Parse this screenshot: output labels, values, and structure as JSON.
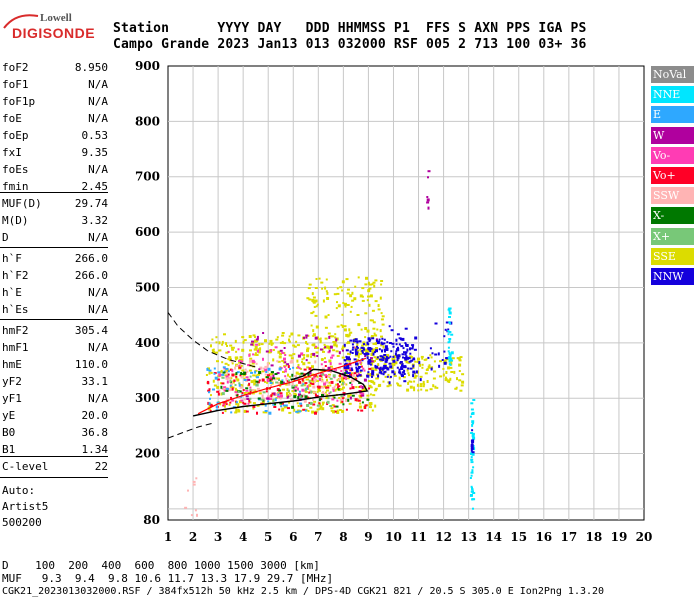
{
  "logo": {
    "line1": "Lowell",
    "line2": "DIGISONDE"
  },
  "header": {
    "row1": "Station      YYYY DAY   DDD HHMMSS P1  FFS S AXN PPS IGA PS",
    "row2": "Campo Grande 2023 Jan13 013 032000 RSF 005 2 713 100 03+ 36"
  },
  "params": [
    {
      "label": "foF2",
      "value": "8.950"
    },
    {
      "label": "foF1",
      "value": "N/A"
    },
    {
      "label": "foF1p",
      "value": "N/A"
    },
    {
      "label": "foE",
      "value": "N/A"
    },
    {
      "label": "foEp",
      "value": "0.53"
    },
    {
      "label": "fxI",
      "value": "9.35"
    },
    {
      "label": "foEs",
      "value": "N/A"
    },
    {
      "label": "fmin",
      "value": "2.45"
    },
    {
      "label": "MUF(D)",
      "value": "29.74"
    },
    {
      "label": "M(D)",
      "value": "3.32"
    },
    {
      "label": "D",
      "value": "N/A"
    },
    {
      "label": "h`F",
      "value": "266.0"
    },
    {
      "label": "h`F2",
      "value": "266.0"
    },
    {
      "label": "h`E",
      "value": "N/A"
    },
    {
      "label": "h`Es",
      "value": "N/A"
    },
    {
      "label": "hmF2",
      "value": "305.4"
    },
    {
      "label": "hmF1",
      "value": "N/A"
    },
    {
      "label": "hmE",
      "value": "110.0"
    },
    {
      "label": "yF2",
      "value": "33.1"
    },
    {
      "label": "yF1",
      "value": "N/A"
    },
    {
      "label": "yE",
      "value": "20.0"
    },
    {
      "label": "B0",
      "value": "36.8"
    },
    {
      "label": "B1",
      "value": "1.34"
    },
    {
      "label": "C-level",
      "value": "22"
    }
  ],
  "auto": {
    "line1": "Auto:",
    "line2": "Artist5",
    "line3": "500200"
  },
  "legend": [
    {
      "label": "NoVal",
      "color": "#8c8c8c"
    },
    {
      "label": "NNE",
      "color": "#00e6ff"
    },
    {
      "label": "E",
      "color": "#2ea8ff"
    },
    {
      "label": "W",
      "color": "#b0009e"
    },
    {
      "label": "Vo-",
      "color": "#ff3cb4"
    },
    {
      "label": "Vo+",
      "color": "#ff0026"
    },
    {
      "label": "SSW",
      "color": "#ffb4b4"
    },
    {
      "label": "X-",
      "color": "#007800"
    },
    {
      "label": "X+",
      "color": "#78c878"
    },
    {
      "label": "SSE",
      "color": "#dcdc00"
    },
    {
      "label": "NNW",
      "color": "#1400dc"
    }
  ],
  "footer": {
    "line1": "D    100  200  400  600  800 1000 1500 3000 [km]",
    "line2": "MUF   9.3  9.4  9.8 10.6 11.7 13.3 17.9 29.7 [MHz]",
    "line3": "CGK21_2023013032000.RSF / 384fx512h 50 kHz 2.5 km / DPS-4D CGK21 821 / 20.5 S 305.0 E Ion2Png 1.3.20"
  },
  "chart_data": {
    "type": "scatter",
    "xlim": [
      1,
      20
    ],
    "ylim": [
      80,
      900
    ],
    "x_ticks": [
      "1",
      "2",
      "3",
      "4",
      "5",
      "6",
      "7",
      "8",
      "9",
      "10",
      "11",
      "12",
      "13",
      "14",
      "15",
      "16",
      "17",
      "18",
      "19",
      "20"
    ],
    "y_ticks": [
      "900",
      "800",
      "700",
      "600",
      "500",
      "400",
      "300",
      "200",
      "80"
    ],
    "grid": true,
    "legend_position": "right",
    "profile_solid": [
      [
        2.0,
        268
      ],
      [
        3,
        278
      ],
      [
        4,
        285
      ],
      [
        5,
        290
      ],
      [
        6,
        295
      ],
      [
        7,
        302
      ],
      [
        8,
        307
      ],
      [
        8.95,
        313
      ],
      [
        8.8,
        325
      ],
      [
        8.3,
        338
      ],
      [
        7.5,
        350
      ],
      [
        6.8,
        352
      ],
      [
        6.4,
        340
      ],
      [
        5.9,
        333
      ]
    ],
    "profile_dashed_upper": [
      [
        1,
        455
      ],
      [
        1.4,
        430
      ],
      [
        2,
        405
      ],
      [
        2.6,
        385
      ],
      [
        3.4,
        370
      ],
      [
        4.6,
        355
      ]
    ],
    "profile_dashed_lower": [
      [
        1,
        228
      ],
      [
        1.6,
        238
      ],
      [
        2.2,
        248
      ],
      [
        2.8,
        255
      ]
    ],
    "red_trace": [
      [
        2.2,
        272
      ],
      [
        3,
        290
      ],
      [
        4,
        305
      ],
      [
        5,
        318
      ],
      [
        6,
        330
      ],
      [
        7,
        345
      ],
      [
        8,
        358
      ],
      [
        8.9,
        372
      ]
    ],
    "clusters": [
      {
        "color": "#dcdc00",
        "n": 520,
        "x": [
          2.5,
          9.3
        ],
        "y": [
          275,
          420
        ]
      },
      {
        "color": "#dcdc00",
        "n": 140,
        "x": [
          6.5,
          9.6
        ],
        "y": [
          380,
          520
        ]
      },
      {
        "color": "#dcdc00",
        "n": 160,
        "x": [
          9.0,
          12.8
        ],
        "y": [
          315,
          380
        ]
      },
      {
        "color": "#ffb4b4",
        "n": 120,
        "x": [
          3.0,
          8.5
        ],
        "y": [
          295,
          370
        ]
      },
      {
        "color": "#ff0026",
        "n": 130,
        "x": [
          2.5,
          9.0
        ],
        "y": [
          275,
          360
        ]
      },
      {
        "color": "#ff3cb4",
        "n": 90,
        "x": [
          3.0,
          9.0
        ],
        "y": [
          290,
          400
        ]
      },
      {
        "color": "#b0009e",
        "n": 60,
        "x": [
          4.0,
          9.5
        ],
        "y": [
          300,
          420
        ]
      },
      {
        "color": "#1400dc",
        "n": 210,
        "x": [
          8.0,
          10.8
        ],
        "y": [
          340,
          410
        ]
      },
      {
        "color": "#1400dc",
        "n": 40,
        "x": [
          9.5,
          12.3
        ],
        "y": [
          330,
          440
        ]
      },
      {
        "color": "#2ea8ff",
        "n": 60,
        "x": [
          2.5,
          6.5
        ],
        "y": [
          275,
          360
        ]
      },
      {
        "color": "#007800",
        "n": 50,
        "x": [
          3.0,
          9.0
        ],
        "y": [
          285,
          350
        ]
      },
      {
        "color": "#78c878",
        "n": 40,
        "x": [
          3.0,
          8.0
        ],
        "y": [
          285,
          345
        ]
      },
      {
        "color": "#00e6ff",
        "n": 30,
        "x": [
          12.15,
          12.3
        ],
        "y": [
          360,
          465
        ]
      },
      {
        "color": "#00e6ff",
        "n": 40,
        "x": [
          13.05,
          13.15
        ],
        "y": [
          100,
          305
        ]
      },
      {
        "color": "#1400dc",
        "n": 12,
        "x": [
          13.08,
          13.12
        ],
        "y": [
          200,
          245
        ]
      },
      {
        "color": "#b0009e",
        "n": 6,
        "x": [
          11.3,
          11.4
        ],
        "y": [
          640,
          720
        ]
      },
      {
        "color": "#ffb4b4",
        "n": 8,
        "x": [
          1.6,
          2.2
        ],
        "y": [
          90,
          160
        ]
      }
    ]
  }
}
